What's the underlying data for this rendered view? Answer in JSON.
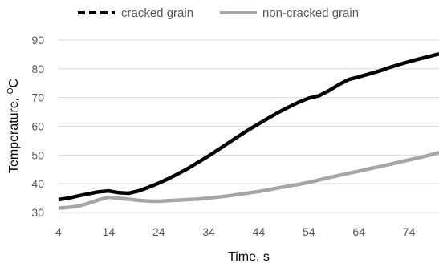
{
  "chart_data": {
    "type": "line",
    "xlabel": "Time, s",
    "ylabel": "Temperature, ",
    "ylabel_unit_sup": "O",
    "ylabel_unit": "C",
    "xlim": [
      4,
      80
    ],
    "ylim": [
      30,
      90
    ],
    "xticks": [
      4,
      14,
      24,
      34,
      44,
      54,
      64,
      74
    ],
    "yticks": [
      30,
      40,
      50,
      60,
      70,
      80,
      90
    ],
    "grid": "horizontal",
    "legend_position": "top",
    "series": [
      {
        "name": "cracked grain",
        "color": "#000000",
        "style": "dashed-legend",
        "x": [
          4,
          6,
          8,
          10,
          12,
          14,
          15,
          16,
          18,
          20,
          22,
          24,
          26,
          28,
          30,
          32,
          34,
          36,
          38,
          40,
          42,
          44,
          46,
          48,
          50,
          52,
          54,
          56,
          58,
          60,
          62,
          64,
          66,
          68,
          70,
          72,
          74,
          76,
          78,
          80
        ],
        "y": [
          34.5,
          35,
          35.8,
          36.5,
          37.2,
          37.5,
          37.2,
          36.9,
          36.7,
          37.5,
          38.8,
          40.2,
          41.8,
          43.6,
          45.5,
          47.6,
          49.7,
          52,
          54.3,
          56.6,
          58.8,
          60.9,
          62.9,
          64.9,
          66.7,
          68.4,
          69.8,
          70.6,
          72.4,
          74.5,
          76.3,
          77.2,
          78.2,
          79.2,
          80.4,
          81.5,
          82.5,
          83.4,
          84.3,
          85.2
        ]
      },
      {
        "name": "non-cracked grain",
        "color": "#a6a6a6",
        "style": "solid",
        "x": [
          4,
          6,
          8,
          10,
          12,
          14,
          16,
          18,
          20,
          22,
          24,
          26,
          28,
          30,
          32,
          34,
          36,
          38,
          40,
          42,
          44,
          46,
          48,
          50,
          52,
          54,
          56,
          58,
          60,
          62,
          64,
          66,
          68,
          70,
          72,
          74,
          76,
          78,
          80
        ],
        "y": [
          31.5,
          31.8,
          32.2,
          33.2,
          34.4,
          35.3,
          35,
          34.6,
          34.2,
          34,
          33.9,
          34.1,
          34.3,
          34.5,
          34.7,
          35,
          35.4,
          35.8,
          36.3,
          36.8,
          37.3,
          37.9,
          38.6,
          39.2,
          39.8,
          40.5,
          41.3,
          42.1,
          42.9,
          43.7,
          44.4,
          45.2,
          45.9,
          46.7,
          47.5,
          48.3,
          49.1,
          49.9,
          50.9
        ]
      }
    ]
  }
}
